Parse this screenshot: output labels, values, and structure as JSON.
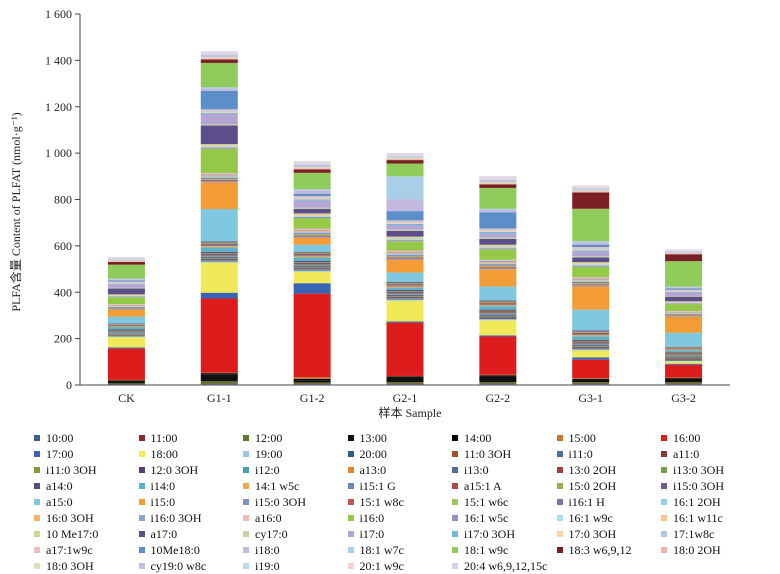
{
  "chart_data": {
    "type": "bar",
    "stacked": true,
    "xlabel": "样本 Sample",
    "ylabel": "PLFA含量 Content of PLFAT (nmol·g⁻¹)",
    "ylim": [
      0,
      1600
    ],
    "yticks": [
      0,
      200,
      400,
      600,
      800,
      1000,
      1200,
      1400,
      1600
    ],
    "ytick_labels": [
      "0",
      "200",
      "400",
      "600",
      "800",
      "1 000",
      "1 200",
      "1 400",
      "1 600"
    ],
    "categories": [
      "CK",
      "G1-1",
      "G1-2",
      "G2-1",
      "G2-2",
      "G3-1",
      "G3-2"
    ],
    "grid": false,
    "legend_position": "bottom",
    "series": [
      {
        "name": "10:00",
        "color": "#3c5f8f",
        "values": [
          2,
          3,
          3,
          3,
          3,
          3,
          3
        ]
      },
      {
        "name": "11:00",
        "color": "#8b2b2b",
        "values": [
          2,
          3,
          3,
          3,
          3,
          3,
          3
        ]
      },
      {
        "name": "12:00",
        "color": "#5d7a2e",
        "values": [
          3,
          10,
          5,
          6,
          6,
          6,
          6
        ]
      },
      {
        "name": "13:00",
        "color": "#111111",
        "values": [
          10,
          30,
          10,
          20,
          25,
          12,
          15
        ]
      },
      {
        "name": "14:00",
        "color": "#000000",
        "values": [
          3,
          5,
          5,
          5,
          5,
          3,
          3
        ]
      },
      {
        "name": "15:00",
        "color": "#c87533",
        "values": [
          2,
          2,
          8,
          2,
          2,
          2,
          2
        ]
      },
      {
        "name": "16:00",
        "color": "#dd1c1c",
        "values": [
          135,
          320,
          360,
          230,
          165,
          80,
          55
        ]
      },
      {
        "name": "17:00",
        "color": "#3a62b5",
        "values": [
          5,
          25,
          45,
          5,
          5,
          10,
          5
        ]
      },
      {
        "name": "18:00",
        "color": "#f0ea5a",
        "values": [
          45,
          130,
          50,
          90,
          65,
          30,
          10
        ]
      },
      {
        "name": "19:00",
        "color": "#96c8e6",
        "values": [
          3,
          5,
          5,
          5,
          5,
          5,
          3
        ]
      },
      {
        "name": "20:00",
        "color": "#2f5d8a",
        "values": [
          3,
          3,
          3,
          3,
          3,
          3,
          3
        ]
      },
      {
        "name": "11:0 3OH",
        "color": "#a0522d",
        "values": [
          2,
          2,
          2,
          2,
          2,
          2,
          2
        ]
      },
      {
        "name": "i11:0",
        "color": "#4a6fa5",
        "values": [
          2,
          3,
          3,
          3,
          3,
          3,
          3
        ]
      },
      {
        "name": "a11:0",
        "color": "#8b3a3a",
        "values": [
          2,
          3,
          3,
          3,
          3,
          3,
          3
        ]
      },
      {
        "name": "i11:0 3OH",
        "color": "#7f9a3a",
        "values": [
          2,
          3,
          3,
          3,
          3,
          3,
          3
        ]
      },
      {
        "name": "12:0 3OH",
        "color": "#5b3b7a",
        "values": [
          2,
          3,
          3,
          3,
          3,
          3,
          3
        ]
      },
      {
        "name": "i12:0",
        "color": "#4a9bb5",
        "values": [
          5,
          5,
          5,
          5,
          5,
          5,
          5
        ]
      },
      {
        "name": "a13:0",
        "color": "#e08a2c",
        "values": [
          2,
          3,
          3,
          3,
          3,
          3,
          3
        ]
      },
      {
        "name": "i13:0",
        "color": "#4f6e9e",
        "values": [
          3,
          5,
          5,
          5,
          5,
          5,
          3
        ]
      },
      {
        "name": "13:0 2OH",
        "color": "#a33c3c",
        "values": [
          2,
          3,
          3,
          3,
          3,
          3,
          3
        ]
      },
      {
        "name": "i13:0 3OH",
        "color": "#7d9b4d",
        "values": [
          2,
          3,
          3,
          3,
          3,
          3,
          3
        ]
      },
      {
        "name": "a14:0",
        "color": "#5d4a80",
        "values": [
          3,
          5,
          5,
          5,
          5,
          5,
          3
        ]
      },
      {
        "name": "i14:0",
        "color": "#5cb2c8",
        "values": [
          10,
          20,
          15,
          10,
          15,
          15,
          8
        ]
      },
      {
        "name": "14:1 w5c",
        "color": "#f2a646",
        "values": [
          3,
          5,
          5,
          5,
          5,
          5,
          3
        ]
      },
      {
        "name": "i15:1 G",
        "color": "#6c86b8",
        "values": [
          3,
          5,
          5,
          5,
          5,
          5,
          3
        ]
      },
      {
        "name": "a15:1 A",
        "color": "#b34848",
        "values": [
          3,
          5,
          5,
          5,
          5,
          5,
          3
        ]
      },
      {
        "name": "15:0 2OH",
        "color": "#8fb04f",
        "values": [
          3,
          5,
          5,
          5,
          5,
          5,
          3
        ]
      },
      {
        "name": "i15:0 3OH",
        "color": "#6f5a94",
        "values": [
          3,
          5,
          5,
          5,
          5,
          5,
          3
        ]
      },
      {
        "name": "a15:0",
        "color": "#7fc8e0",
        "values": [
          30,
          140,
          30,
          40,
          60,
          90,
          60
        ]
      },
      {
        "name": "i15:0",
        "color": "#f49d37",
        "values": [
          30,
          115,
          30,
          55,
          75,
          100,
          70
        ]
      },
      {
        "name": "i15:0 3OH",
        "color": "#7d94c4",
        "values": [
          3,
          5,
          5,
          5,
          5,
          5,
          3
        ]
      },
      {
        "name": "15:1 w8c",
        "color": "#c25555",
        "values": [
          3,
          5,
          5,
          5,
          5,
          5,
          3
        ]
      },
      {
        "name": "15:1 w6c",
        "color": "#a2c266",
        "values": [
          3,
          5,
          5,
          5,
          5,
          5,
          3
        ]
      },
      {
        "name": "i16:1 H",
        "color": "#8370a8",
        "values": [
          3,
          5,
          5,
          5,
          5,
          5,
          3
        ]
      },
      {
        "name": "16:1 2OH",
        "color": "#93d2e8",
        "values": [
          3,
          5,
          5,
          5,
          5,
          5,
          3
        ]
      },
      {
        "name": "16:0 3OH",
        "color": "#f7b266",
        "values": [
          3,
          5,
          5,
          5,
          5,
          5,
          3
        ]
      },
      {
        "name": "i16:0 3OH",
        "color": "#8ea4cf",
        "values": [
          3,
          5,
          5,
          5,
          5,
          5,
          3
        ]
      },
      {
        "name": "a16:0",
        "color": "#f4b8b8",
        "values": [
          3,
          5,
          5,
          5,
          5,
          5,
          3
        ]
      },
      {
        "name": "i16:0",
        "color": "#93c947",
        "values": [
          30,
          105,
          45,
          40,
          45,
          45,
          30
        ]
      },
      {
        "name": "16:1 w5c",
        "color": "#9d8cc0",
        "values": [
          3,
          5,
          5,
          5,
          5,
          5,
          3
        ]
      },
      {
        "name": "16:1 w9c",
        "color": "#a8ddef",
        "values": [
          3,
          5,
          5,
          5,
          5,
          5,
          3
        ]
      },
      {
        "name": "16:1 w11c",
        "color": "#f9c48a",
        "values": [
          3,
          5,
          5,
          5,
          5,
          5,
          3
        ]
      },
      {
        "name": "10 Me17:0",
        "color": "#c8d89a",
        "values": [
          3,
          5,
          5,
          5,
          5,
          5,
          3
        ]
      },
      {
        "name": "a17:0",
        "color": "#5e4d8b",
        "values": [
          25,
          80,
          20,
          25,
          25,
          20,
          20
        ]
      },
      {
        "name": "cy17:0",
        "color": "#c2d6a0",
        "values": [
          3,
          5,
          5,
          5,
          5,
          5,
          3
        ]
      },
      {
        "name": "i17:0",
        "color": "#b4a6d4",
        "values": [
          15,
          45,
          30,
          20,
          20,
          20,
          15
        ]
      },
      {
        "name": "i17:0 3OH",
        "color": "#6fb8d9",
        "values": [
          3,
          5,
          5,
          5,
          5,
          5,
          3
        ]
      },
      {
        "name": "17:0 3OH",
        "color": "#f9d3a6",
        "values": [
          3,
          5,
          5,
          5,
          5,
          5,
          3
        ]
      },
      {
        "name": "17:1w8c",
        "color": "#b7c4e2",
        "values": [
          3,
          5,
          5,
          5,
          5,
          5,
          3
        ]
      },
      {
        "name": "a17:1w9c",
        "color": "#e8c0c0",
        "values": [
          3,
          5,
          5,
          5,
          5,
          5,
          3
        ]
      },
      {
        "name": "10Me18:0",
        "color": "#5c8fc9",
        "values": [
          5,
          80,
          10,
          40,
          70,
          10,
          5
        ]
      },
      {
        "name": "i18:0",
        "color": "#c3b8dd",
        "values": [
          5,
          10,
          15,
          50,
          10,
          10,
          5
        ]
      },
      {
        "name": "18:1 w7c",
        "color": "#a9cfe8",
        "values": [
          3,
          5,
          5,
          100,
          5,
          5,
          3
        ]
      },
      {
        "name": "18:1 w9c",
        "color": "#8fcc5c",
        "values": [
          60,
          105,
          70,
          55,
          90,
          140,
          110
        ]
      },
      {
        "name": "18:3 w6,9,12",
        "color": "#7a1f23",
        "values": [
          12,
          15,
          15,
          15,
          15,
          70,
          30
        ]
      },
      {
        "name": "18:0 2OH",
        "color": "#f0b2b2",
        "values": [
          3,
          5,
          5,
          5,
          5,
          5,
          3
        ]
      },
      {
        "name": "18:0 3OH",
        "color": "#d6e3b8",
        "values": [
          3,
          5,
          5,
          5,
          5,
          5,
          3
        ]
      },
      {
        "name": "cy19:0 w8c",
        "color": "#c8bfdf",
        "values": [
          5,
          10,
          10,
          5,
          10,
          5,
          5
        ]
      },
      {
        "name": "i19:0",
        "color": "#b8dcef",
        "values": [
          3,
          5,
          5,
          5,
          5,
          5,
          3
        ]
      },
      {
        "name": "20:1 w9c",
        "color": "#f7cfcf",
        "values": [
          3,
          5,
          5,
          5,
          5,
          5,
          3
        ]
      },
      {
        "name": "20:4 w6,9,12,15c",
        "color": "#d6d0e8",
        "values": [
          3,
          5,
          5,
          5,
          5,
          5,
          3
        ]
      }
    ]
  }
}
